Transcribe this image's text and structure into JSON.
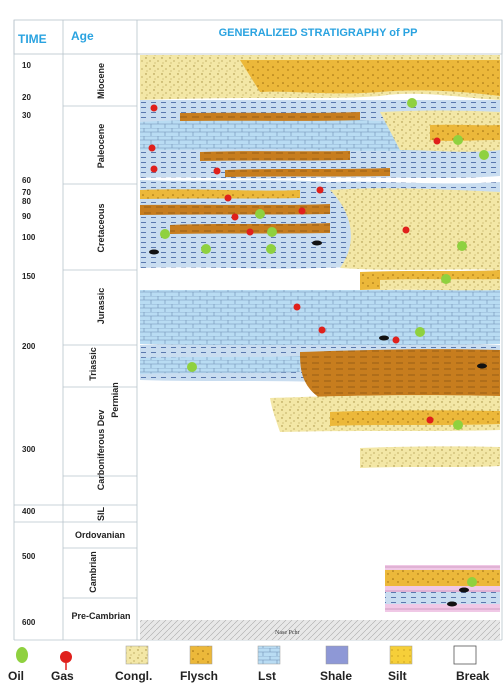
{
  "header": {
    "time_label": "TIME",
    "age_label": "Age",
    "title": "GENERALIZED STRATIGRAPHY of PP"
  },
  "time_ticks": [
    {
      "label": "10"
    },
    {
      "label": "20"
    },
    {
      "label": "30"
    },
    {
      "label": "60"
    },
    {
      "label": "70"
    },
    {
      "label": "80"
    },
    {
      "label": "90"
    },
    {
      "label": "100"
    },
    {
      "label": "150"
    },
    {
      "label": "200"
    },
    {
      "label": "300"
    },
    {
      "label": "400"
    },
    {
      "label": "500"
    },
    {
      "label": "600"
    }
  ],
  "ages": [
    {
      "label": "Miocene"
    },
    {
      "label": "Paleocene"
    },
    {
      "label": "Cretaceous"
    },
    {
      "label": "Jurassic"
    },
    {
      "label": "Triassic"
    },
    {
      "label": "Permian"
    },
    {
      "label": "Carboniferous Dev"
    },
    {
      "label": "SIL"
    },
    {
      "label": "Ordovanian"
    },
    {
      "label": "Cambrian"
    },
    {
      "label": "Pre-Cambrian"
    }
  ],
  "legend": [
    {
      "label": "Oil",
      "symbol": "oil-dot",
      "color": "#8fd13f"
    },
    {
      "label": "Gas",
      "symbol": "gas-marker",
      "color": "#e0201c"
    },
    {
      "label": "Congl.",
      "symbol": "conglomerate",
      "color": "#f3e7a6"
    },
    {
      "label": "Flysch",
      "symbol": "flysch",
      "color": "#f0b92a"
    },
    {
      "label": "Lst",
      "symbol": "limestone",
      "color": "#a9d3f0"
    },
    {
      "label": "Shale",
      "symbol": "shale",
      "color": "#8e98d6"
    },
    {
      "label": "Silt",
      "symbol": "silt",
      "color": "#f6cf39"
    },
    {
      "label": "Break",
      "symbol": "hiatus",
      "color": "#ffffff"
    }
  ],
  "basement_label": "Nase Pchr"
}
